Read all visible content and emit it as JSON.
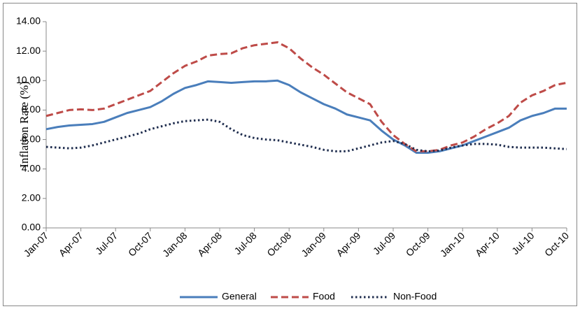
{
  "chart_data": {
    "type": "line",
    "ylabel": "Inflation Rate (%)",
    "categories": [
      "Jan-07",
      null,
      null,
      "Apr-07",
      null,
      null,
      "Jul-07",
      null,
      null,
      "Oct-07",
      null,
      null,
      "Jan-08",
      null,
      null,
      "Apr-08",
      null,
      null,
      "Jul-08",
      null,
      null,
      "Oct-08",
      null,
      null,
      "Jan-09",
      null,
      null,
      "Apr-09",
      null,
      null,
      "Jul-09",
      null,
      null,
      "Oct-09",
      null,
      null,
      "Jan-10",
      null,
      null,
      "Apr-10",
      null,
      null,
      "Jul-10",
      null,
      null,
      "Oct-10"
    ],
    "series": [
      {
        "name": "General",
        "color": "#4a7ebb",
        "dash": "solid",
        "values": [
          6.7,
          6.85,
          6.95,
          7.0,
          7.05,
          7.2,
          7.5,
          7.8,
          8.0,
          8.2,
          8.6,
          9.1,
          9.5,
          9.7,
          9.95,
          9.9,
          9.85,
          9.9,
          9.95,
          9.95,
          10.0,
          9.7,
          9.2,
          8.8,
          8.4,
          8.1,
          7.7,
          7.5,
          7.3,
          6.6,
          6.0,
          5.6,
          5.1,
          5.1,
          5.2,
          5.4,
          5.6,
          5.9,
          6.2,
          6.5,
          6.8,
          7.3,
          7.6,
          7.8,
          8.1,
          8.1
        ]
      },
      {
        "name": "Food",
        "color": "#be4b48",
        "dash": "dashed",
        "values": [
          7.6,
          7.8,
          8.0,
          8.05,
          8.0,
          8.1,
          8.4,
          8.7,
          9.0,
          9.3,
          9.9,
          10.5,
          11.0,
          11.3,
          11.7,
          11.8,
          11.85,
          12.2,
          12.4,
          12.5,
          12.6,
          12.2,
          11.5,
          10.9,
          10.4,
          9.8,
          9.2,
          8.8,
          8.4,
          7.2,
          6.3,
          5.7,
          5.2,
          5.2,
          5.3,
          5.6,
          5.8,
          6.2,
          6.7,
          7.1,
          7.6,
          8.5,
          9.0,
          9.3,
          9.7,
          9.85
        ]
      },
      {
        "name": "Non-Food",
        "color": "#1f2d4e",
        "dash": "dotted",
        "values": [
          5.5,
          5.45,
          5.4,
          5.45,
          5.6,
          5.8,
          6.0,
          6.2,
          6.4,
          6.7,
          6.9,
          7.1,
          7.25,
          7.3,
          7.35,
          7.2,
          6.7,
          6.3,
          6.1,
          6.0,
          5.95,
          5.8,
          5.65,
          5.5,
          5.3,
          5.2,
          5.2,
          5.4,
          5.6,
          5.8,
          5.9,
          5.7,
          5.3,
          5.2,
          5.25,
          5.45,
          5.6,
          5.7,
          5.7,
          5.65,
          5.5,
          5.45,
          5.45,
          5.45,
          5.4,
          5.35
        ]
      }
    ],
    "ylim": [
      0,
      14
    ],
    "yticks": [
      {
        "value": 0,
        "label": "0.00"
      },
      {
        "value": 2,
        "label": "2.00"
      },
      {
        "value": 4,
        "label": "4.00"
      },
      {
        "value": 6,
        "label": "6.00"
      },
      {
        "value": 8,
        "label": "8.00"
      },
      {
        "value": 10,
        "label": "10.00"
      },
      {
        "value": 12,
        "label": "12.00"
      },
      {
        "value": 14,
        "label": "14.00"
      }
    ],
    "legend": "bottom"
  }
}
